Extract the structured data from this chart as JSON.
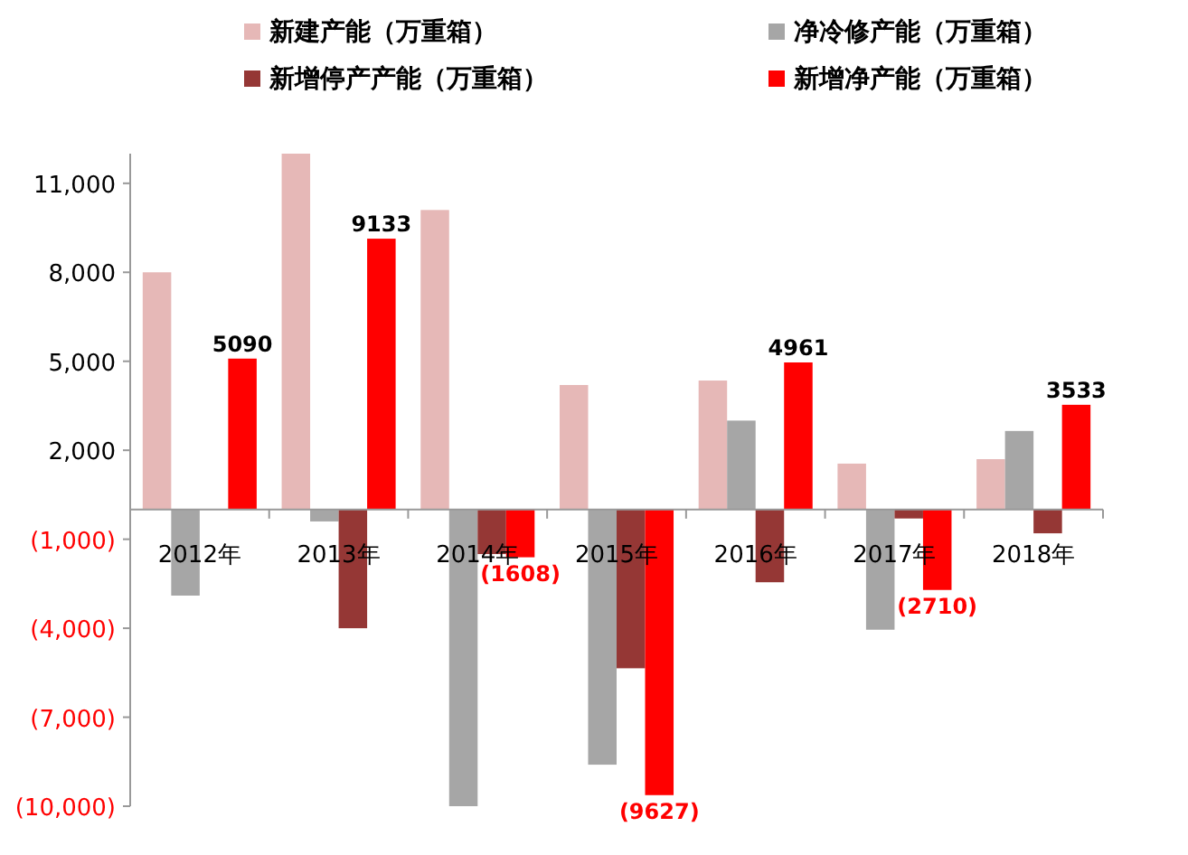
{
  "chart_data": {
    "type": "bar",
    "categories": [
      "2012年",
      "2013年",
      "2014年",
      "2015年",
      "2016年",
      "2017年",
      "2018年"
    ],
    "series": [
      {
        "name": "新建产能（万重箱）",
        "color": "#e6b8b7",
        "values": [
          8000,
          12000,
          10100,
          4200,
          4350,
          1550,
          1700
        ]
      },
      {
        "name": "净冷修产能（万重箱）",
        "color": "#a6a6a6",
        "values": [
          -2900,
          -400,
          -10000,
          -8600,
          3000,
          -4050,
          2650
        ]
      },
      {
        "name": "新增停产产能（万重箱）",
        "color": "#953735",
        "values": [
          null,
          -4000,
          -1500,
          -5350,
          -2450,
          -300,
          -800
        ]
      },
      {
        "name": "新增净产能（万重箱）",
        "color": "#ff0000",
        "values": [
          5090,
          9133,
          -1608,
          -9627,
          4961,
          -2710,
          3533
        ],
        "value_labels": [
          "5090",
          "9133",
          "(1608)",
          "(9627)",
          "4961",
          "(2710)",
          "3533"
        ]
      }
    ],
    "ylim": [
      -10000,
      12000
    ],
    "yticks": [
      {
        "value": -10000,
        "label": "(10,000)"
      },
      {
        "value": -7000,
        "label": "(7,000)"
      },
      {
        "value": -4000,
        "label": "(4,000)"
      },
      {
        "value": -1000,
        "label": "(1,000)"
      },
      {
        "value": 2000,
        "label": "2,000"
      },
      {
        "value": 5000,
        "label": "5,000"
      },
      {
        "value": 8000,
        "label": "8,000"
      },
      {
        "value": 11000,
        "label": "11,000"
      }
    ],
    "legend": "top",
    "grid": false
  }
}
